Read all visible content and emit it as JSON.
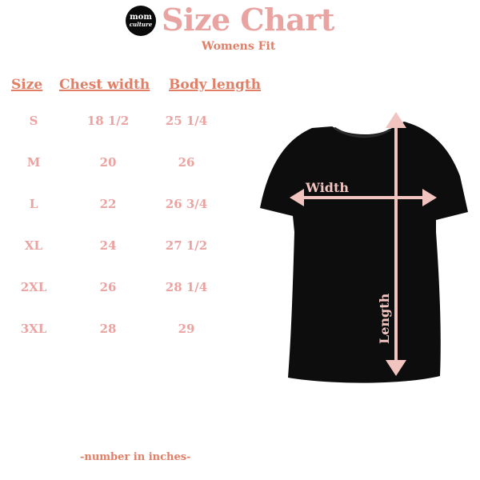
{
  "logo": {
    "line1": "mom",
    "line2": "culture"
  },
  "title": "Size Chart",
  "subtitle": "Womens Fit",
  "headers": [
    "Size",
    "Chest width",
    "Body length"
  ],
  "rows": [
    [
      "S",
      "18 1/2",
      "25 1/4"
    ],
    [
      "M",
      "20",
      "26"
    ],
    [
      "L",
      "22",
      "26 3/4"
    ],
    [
      "XL",
      "24",
      "27 1/2"
    ],
    [
      "2XL",
      "26",
      "28 1/4"
    ],
    [
      "3XL",
      "28",
      "29"
    ]
  ],
  "diagram": {
    "width_label": "Width",
    "length_label": "Length"
  },
  "footer": "-number in  inches-",
  "colors": {
    "title": "#e9a3a1",
    "accent": "#e07f66",
    "values": "#eaa3a1",
    "shirt": "#0d0d0d",
    "arrows": "#f2c4c0"
  }
}
